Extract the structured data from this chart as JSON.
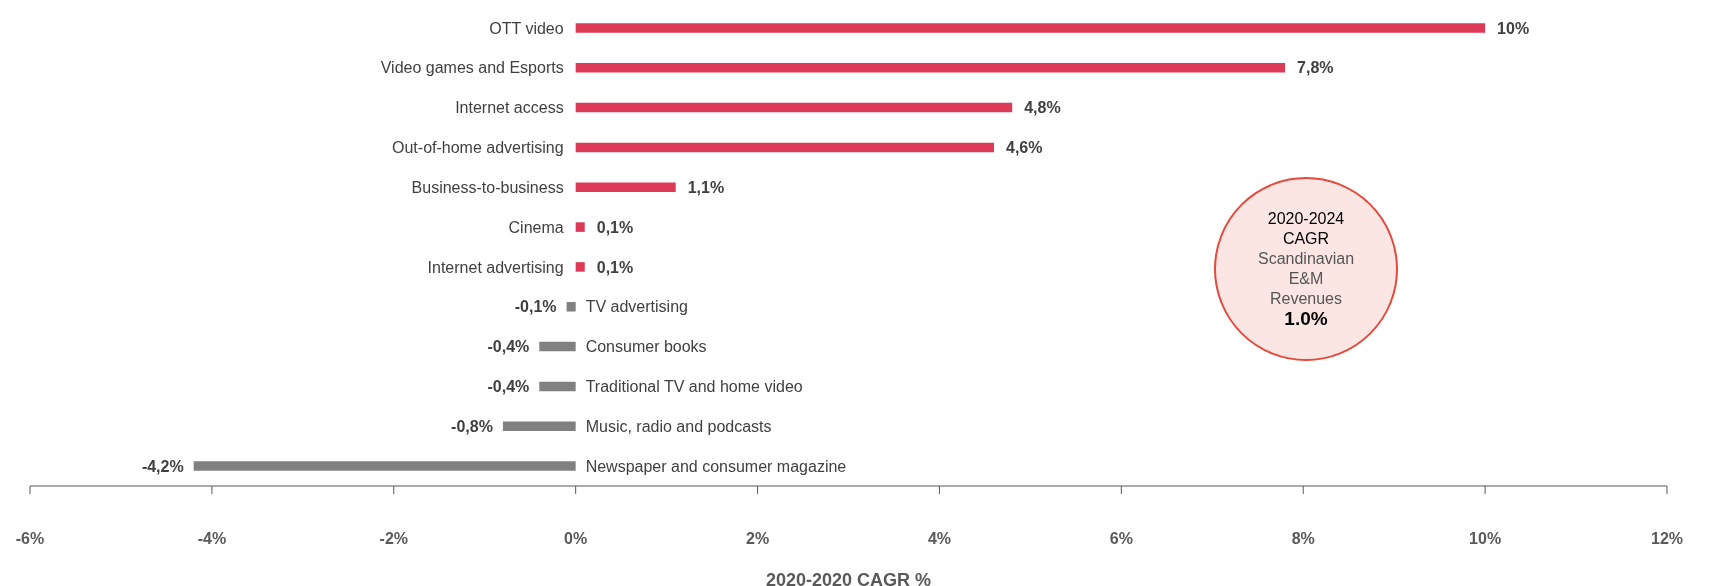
{
  "chart_data": {
    "type": "bar",
    "orientation": "horizontal",
    "xlabel": "2020-2020 CAGR %",
    "categories": [
      "OTT video",
      "Video games and Esports",
      "Internet access",
      "Out-of-home advertising",
      "Business-to-business",
      "Cinema",
      "Internet advertising",
      "TV advertising",
      "Consumer books",
      "Traditional TV and home video",
      "Music, radio and podcasts",
      "Newspaper and consumer magazine"
    ],
    "values": [
      10,
      7.8,
      4.8,
      4.6,
      1.1,
      0.1,
      0.1,
      -0.1,
      -0.4,
      -0.4,
      -0.8,
      -4.2
    ],
    "value_labels": [
      "10%",
      "7,8%",
      "4,8%",
      "4,6%",
      "1,1%",
      "0,1%",
      "0,1%",
      "-0,1%",
      "-0,4%",
      "-0,4%",
      "-0,8%",
      "-4,2%"
    ],
    "colors": [
      "#dc3a56",
      "#dc3a56",
      "#dc3a56",
      "#dc3a56",
      "#dc3a56",
      "#dc3a56",
      "#dc3a56",
      "#808080",
      "#808080",
      "#808080",
      "#808080",
      "#808080"
    ],
    "xlim": [
      -6,
      12
    ],
    "xticks": [
      {
        "value": -6,
        "label": "-6%"
      },
      {
        "value": -4,
        "label": "-4%"
      },
      {
        "value": -2,
        "label": "-2%"
      },
      {
        "value": 0,
        "label": "0%"
      },
      {
        "value": 2,
        "label": "2%"
      },
      {
        "value": 4,
        "label": "4%"
      },
      {
        "value": 6,
        "label": "6%"
      },
      {
        "value": 8,
        "label": "8%"
      },
      {
        "value": 10,
        "label": "10%"
      },
      {
        "value": 12,
        "label": "12%"
      }
    ],
    "annotations": [
      "2020-2024\nCAGR\nScandinavian\nE&M\nRevenues\n1.0%"
    ],
    "grid": false,
    "legend": false
  }
}
